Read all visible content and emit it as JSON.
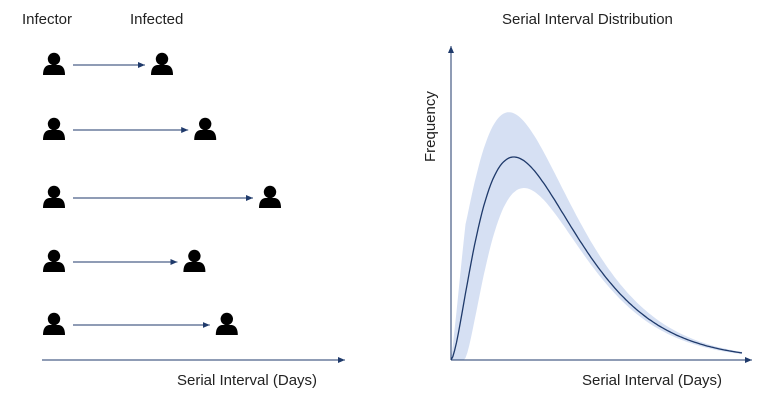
{
  "left_panel": {
    "header_infector": "Infector",
    "header_infected": "Infected",
    "x_axis_label": "Serial Interval (Days)",
    "pairs": [
      {
        "serial_interval": 1.0
      },
      {
        "serial_interval": 1.4
      },
      {
        "serial_interval": 2.0
      },
      {
        "serial_interval": 1.3
      },
      {
        "serial_interval": 1.6
      }
    ],
    "icon": "person-icon",
    "icon_color": "#000000",
    "arrow_color": "#1f3a6b"
  },
  "right_panel": {
    "title": "Serial Interval Distribution",
    "y_axis_label": "Frequency",
    "x_axis_label": "Serial Interval (Days)",
    "curve_color": "#1f3a6b",
    "band_color": "#d6e0f3",
    "axis_color": "#1f3a6b"
  }
}
